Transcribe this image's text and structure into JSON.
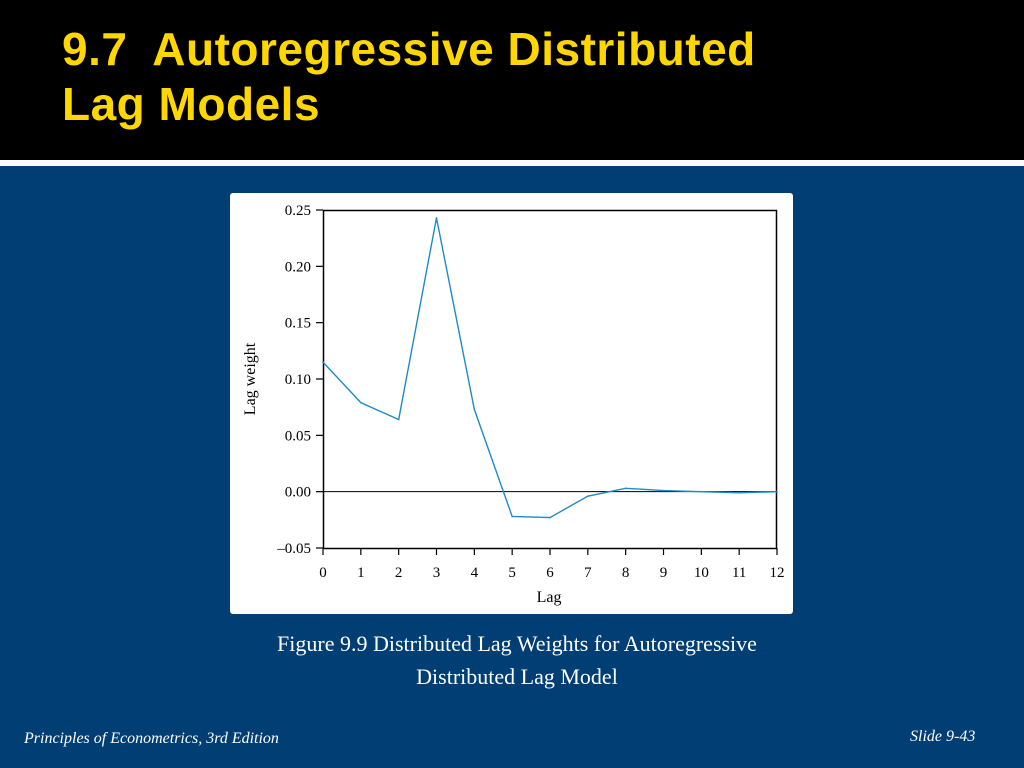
{
  "slide": {
    "title_line1": "9.7  Autoregressive Distributed",
    "title_line2": "Lag Models",
    "caption_line1": "Figure 9.9 Distributed Lag Weights for Autoregressive",
    "caption_line2": "Distributed Lag Model",
    "footer_left": "Principles of Econometrics, 3rd Edition",
    "footer_right": "Slide 9-43",
    "colors": {
      "background": "#003e74",
      "header": "#000000",
      "title": "#ffd700",
      "series_line": "#1f8bc6"
    }
  },
  "chart_data": {
    "type": "line",
    "title": "",
    "xlabel": "Lag",
    "ylabel": "Lag weight",
    "xlim": [
      0,
      12
    ],
    "ylim": [
      -0.05,
      0.25
    ],
    "x_ticks": [
      "0",
      "1",
      "2",
      "3",
      "4",
      "5",
      "6",
      "7",
      "8",
      "9",
      "10",
      "11",
      "12"
    ],
    "y_ticks": [
      "0.25",
      "0.20",
      "0.15",
      "0.10",
      "0.05",
      "0.00",
      "–0.05"
    ],
    "y_tick_values": [
      0.25,
      0.2,
      0.15,
      0.1,
      0.05,
      0.0,
      -0.05
    ],
    "zero_line": true,
    "grid": false,
    "x": [
      0,
      1,
      2,
      3,
      4,
      5,
      6,
      7,
      8,
      9,
      10,
      11,
      12
    ],
    "values": [
      0.115,
      0.079,
      0.064,
      0.243,
      0.073,
      -0.022,
      -0.023,
      -0.004,
      0.003,
      0.001,
      0.0,
      -0.001,
      0.0
    ]
  }
}
